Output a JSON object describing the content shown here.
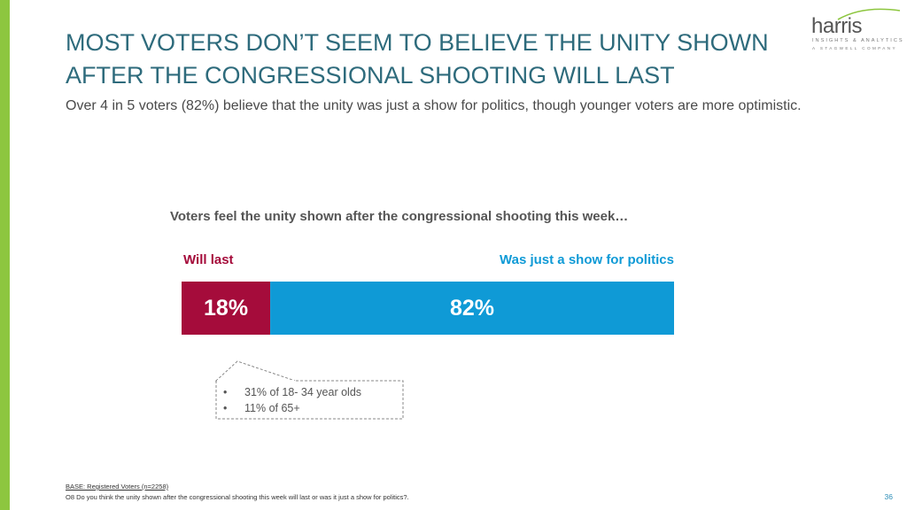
{
  "slide": {
    "title": "MOST VOTERS DON’T SEEM TO BELIEVE THE UNITY SHOWN AFTER THE CONGRESSIONAL SHOOTING WILL LAST",
    "subtitle": "Over 4 in 5 voters (82%) believe that the unity was just a show for politics, though younger voters are more optimistic.",
    "page_number": "36"
  },
  "logo": {
    "word": "harris",
    "line1": "INSIGHTS & ANALYTICS",
    "line2": "A STAGWELL COMPANY"
  },
  "colors": {
    "accent_green": "#8dc63f",
    "title_teal": "#2e6b7c",
    "will_last": "#a50c3b",
    "show_for_politics": "#0f9ad6"
  },
  "chart_data": {
    "type": "bar",
    "orientation": "horizontal-stacked",
    "title": "Voters feel the unity shown after the congressional shooting this week…",
    "categories": [
      "Will last",
      "Was just a show for politics"
    ],
    "values": [
      18,
      82
    ],
    "value_labels": [
      "18%",
      "82%"
    ],
    "unit": "%",
    "xlim": [
      0,
      100
    ]
  },
  "callout": {
    "items": [
      "31% of  18- 34 year olds",
      "11% of 65+"
    ]
  },
  "footnotes": {
    "base": "BASE: Registered Voters (n=2258)",
    "question": "O8 Do you think the unity shown after the congressional shooting this week will last or was it just a show for politics?."
  }
}
